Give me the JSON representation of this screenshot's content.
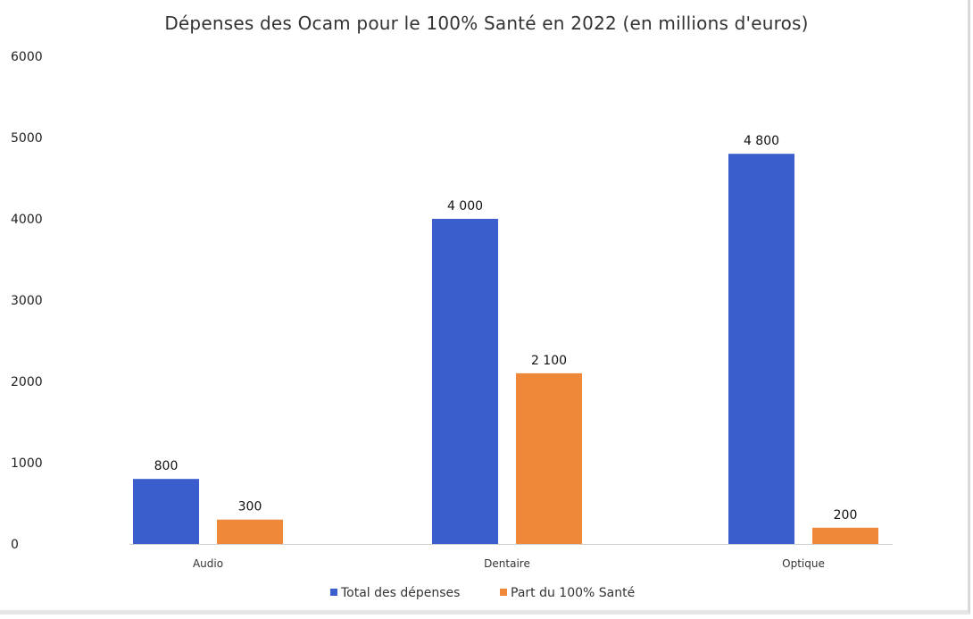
{
  "chart_data": {
    "type": "bar",
    "title": "Dépenses des Ocam pour le 100% Santé en 2022 (en millions d'euros)",
    "xlabel": "",
    "ylabel": "",
    "ylim": [
      0,
      6000
    ],
    "yticks": [
      0,
      1000,
      2000,
      3000,
      4000,
      5000,
      6000
    ],
    "categories": [
      "Audio",
      "Dentaire",
      "Optique"
    ],
    "series": [
      {
        "name": "Total des dépenses",
        "values": [
          800,
          4000,
          4800
        ],
        "labels": [
          "800",
          "4 000",
          "4 800"
        ],
        "color": "#3a5fcd"
      },
      {
        "name": "Part du 100% Santé",
        "values": [
          300,
          2100,
          200
        ],
        "labels": [
          "300",
          "2 100",
          "200"
        ],
        "color": "#f0883a"
      }
    ],
    "grid": false,
    "legend_position": "bottom"
  }
}
